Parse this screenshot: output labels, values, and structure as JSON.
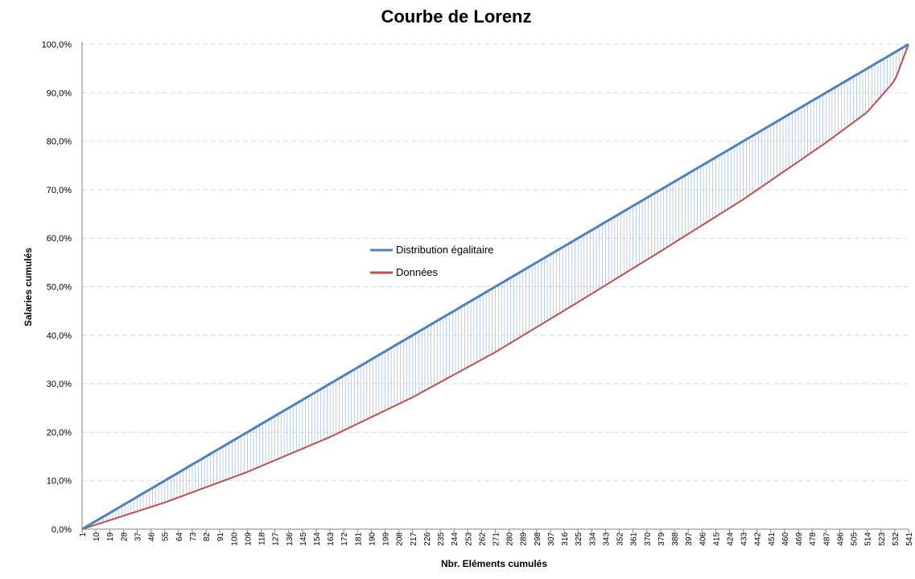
{
  "chart_data": {
    "type": "line",
    "title": "Courbe de Lorenz",
    "xlabel": "Nbr. Eléments cumulés",
    "ylabel": "Salaries cumulés",
    "x_range": [
      1,
      541
    ],
    "ylim": [
      0,
      1
    ],
    "y_ticks": [
      "0,0%",
      "10,0%",
      "20,0%",
      "30,0%",
      "40,0%",
      "50,0%",
      "60,0%",
      "70,0%",
      "80,0%",
      "90,0%",
      "100,0%"
    ],
    "x_tick_labels": [
      "1",
      "10",
      "19",
      "28",
      "37",
      "46",
      "55",
      "64",
      "73",
      "82",
      "91",
      "100",
      "109",
      "118",
      "127",
      "136",
      "145",
      "154",
      "163",
      "172",
      "181",
      "190",
      "199",
      "208",
      "217",
      "226",
      "235",
      "244",
      "253",
      "262",
      "271",
      "280",
      "289",
      "298",
      "307",
      "316",
      "325",
      "334",
      "343",
      "352",
      "361",
      "370",
      "379",
      "388",
      "397",
      "406",
      "415",
      "424",
      "433",
      "442",
      "451",
      "460",
      "469",
      "478",
      "487",
      "496",
      "505",
      "514",
      "523",
      "532",
      "541"
    ],
    "grid": true,
    "legend_position": "center",
    "hi_lo_lines": true,
    "series": [
      {
        "name": "Distribution égalitaire",
        "color": "#4f81bd",
        "x": [
          1,
          541
        ],
        "y": [
          0.0,
          1.0
        ]
      },
      {
        "name": "Données",
        "color": "#c0504d",
        "x": [
          1,
          55,
          109,
          163,
          217,
          271,
          325,
          379,
          433,
          487,
          514,
          532,
          541
        ],
        "y": [
          0.0,
          0.055,
          0.118,
          0.19,
          0.272,
          0.365,
          0.468,
          0.573,
          0.68,
          0.797,
          0.86,
          0.925,
          1.0
        ]
      }
    ]
  }
}
